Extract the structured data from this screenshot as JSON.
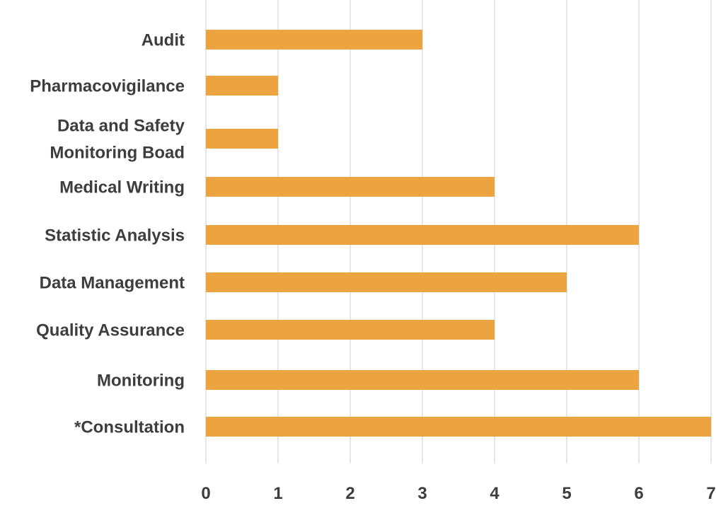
{
  "chart_data": {
    "type": "bar",
    "orientation": "horizontal",
    "title": "",
    "xlabel": "",
    "ylabel": "",
    "categories": [
      [
        "Audit"
      ],
      [
        "Pharmacovigilance"
      ],
      [
        "Data and Safety",
        "Monitoring Boad"
      ],
      [
        "Medical Writing"
      ],
      [
        "Statistic Analysis"
      ],
      [
        "Data Management"
      ],
      [
        "Quality Assurance"
      ],
      [
        "Monitoring"
      ],
      [
        "*Consultation"
      ]
    ],
    "values": [
      3,
      1,
      1,
      4,
      6,
      5,
      4,
      6,
      7
    ],
    "xlim": [
      0,
      7
    ],
    "xticks": [
      "0",
      "1",
      "2",
      "3",
      "4",
      "5",
      "6",
      "7"
    ],
    "grid": true,
    "legend": "none",
    "bar_color": "#EBA440",
    "grid_color": "#DDDDDD",
    "label_color": "#3D3D3D"
  }
}
